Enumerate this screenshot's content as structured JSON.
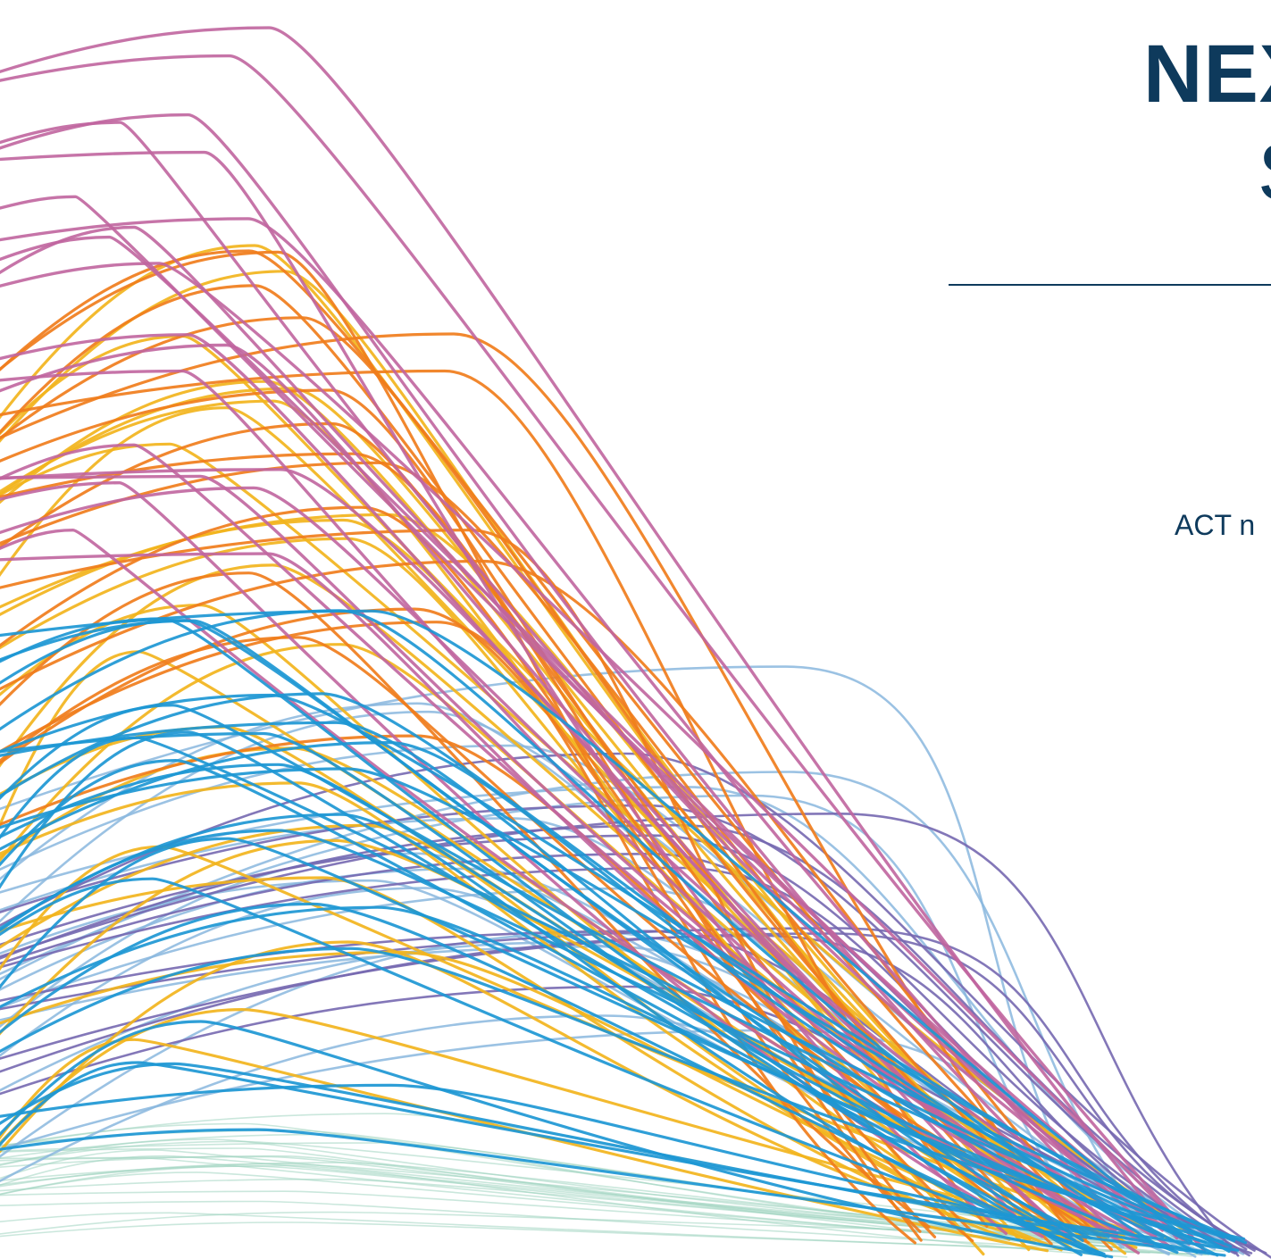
{
  "cover": {
    "title": "NEX",
    "subtitle": "S",
    "tagline": "ACT n"
  },
  "colors": {
    "title_text": "#0e3a5c",
    "magenta": "#c0659e",
    "orange": "#f07d1c",
    "yellow": "#f2b41d",
    "blue": "#1d97d4",
    "light_blue": "#8ab7de",
    "purple": "#7568b0",
    "mint": "#9fd3bf"
  },
  "icons": {
    "artwork": "flowing-curves-illustration"
  }
}
